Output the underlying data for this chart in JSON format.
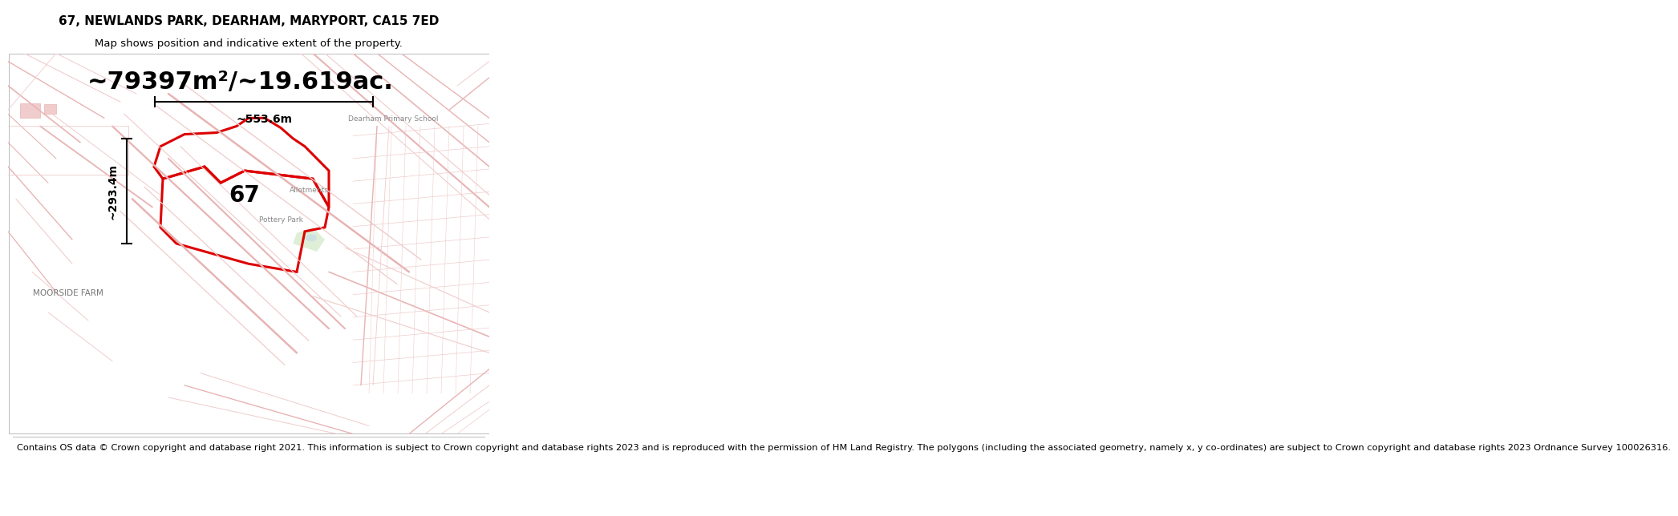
{
  "title_line1": "67, NEWLANDS PARK, DEARHAM, MARYPORT, CA15 7ED",
  "title_line2": "Map shows position and indicative extent of the property.",
  "area_text": "~79397m²/~19.619ac.",
  "label_67": "67",
  "dim_width": "~553.6m",
  "dim_height": "~293.4m",
  "label_moorside": "MOORSIDE FARM",
  "label_pottery": "Pottery Park",
  "label_allotments": "Allotments",
  "label_dearham": "Dearham Primary School",
  "footer_text": "Contains OS data © Crown copyright and database right 2021. This information is subject to Crown copyright and database rights 2023 and is reproduced with the permission of HM Land Registry. The polygons (including the associated geometry, namely x, y co-ordinates) are subject to Crown copyright and database rights 2023 Ordnance Survey 100026316.",
  "bg_color": "#f9f0f0",
  "red_color": "#dd0000",
  "road_color": "#e8b4b4",
  "road_faint": "#f0cccc",
  "white": "#ffffff",
  "title_fontsize": 11,
  "subtitle_fontsize": 9.5,
  "area_fontsize": 22,
  "label_fontsize": 20,
  "dim_fontsize": 10,
  "footer_fontsize": 8.2
}
